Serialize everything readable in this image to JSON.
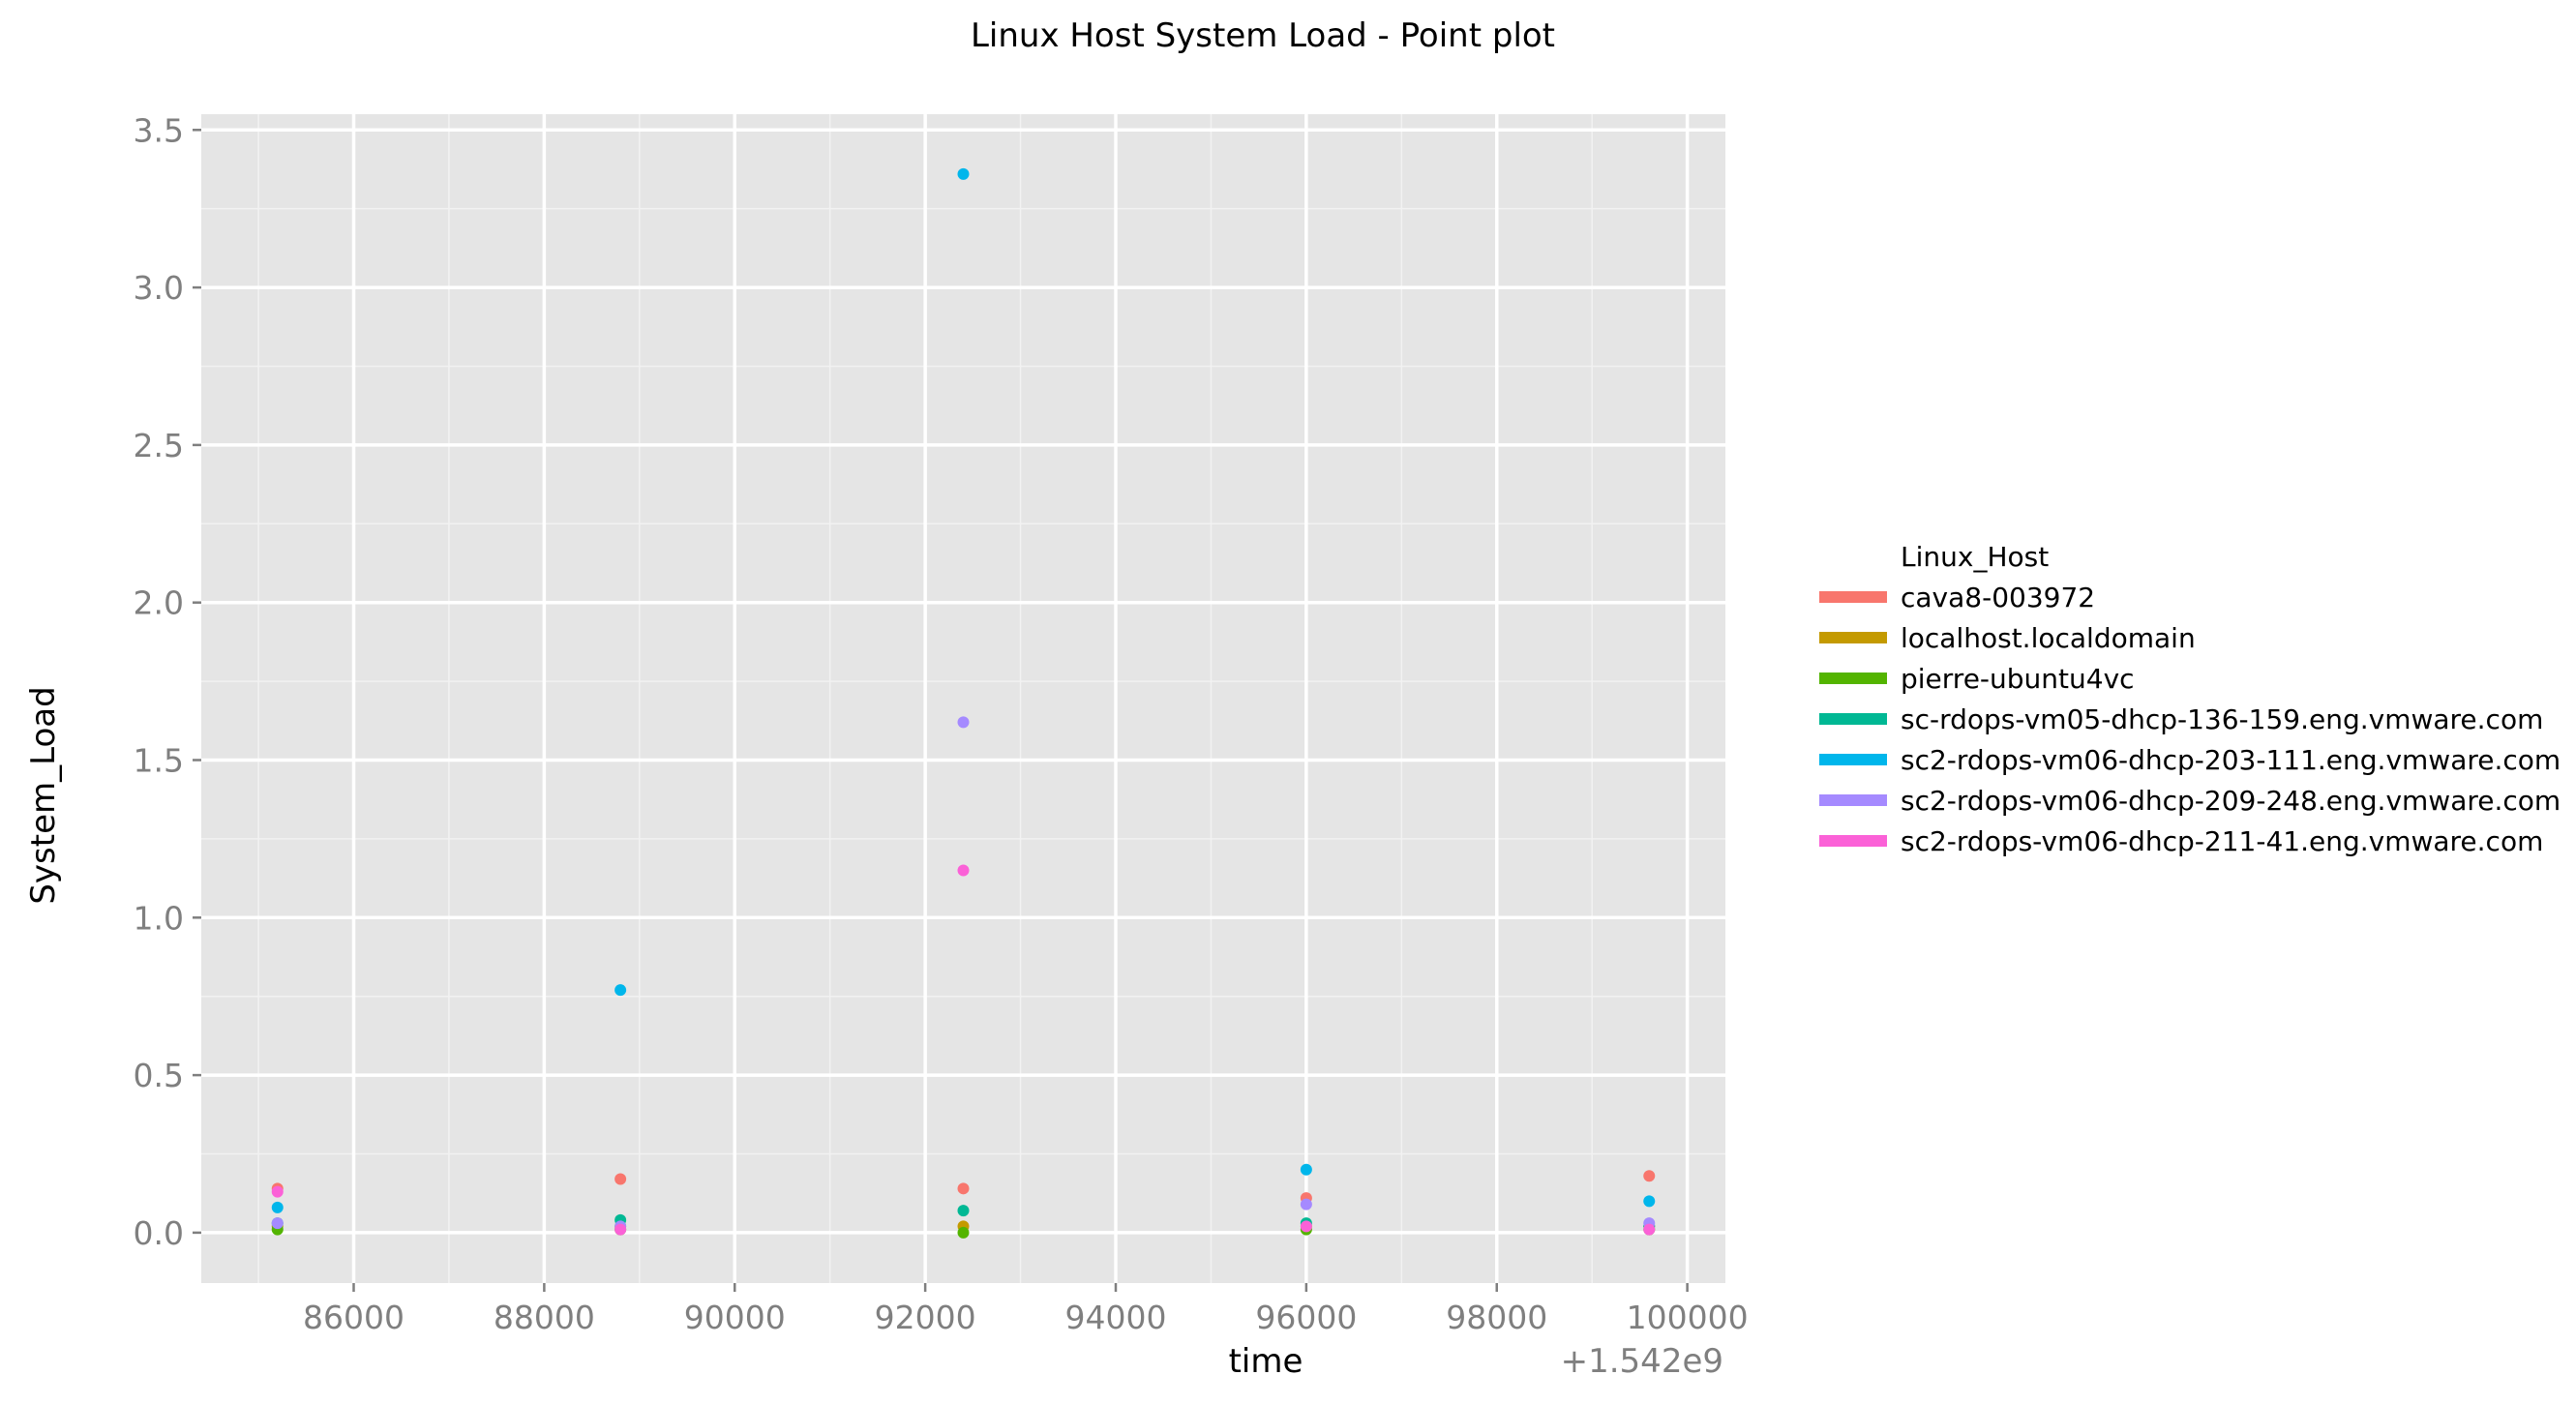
{
  "chart_data": {
    "type": "scatter",
    "title": "Linux Host System Load - Point plot",
    "xlabel": "time",
    "ylabel": "System_Load",
    "x_offset_label": "+1.542e9",
    "x_ticks": [
      "86000",
      "88000",
      "90000",
      "92000",
      "94000",
      "96000",
      "98000",
      "100000"
    ],
    "y_ticks": [
      "0.0",
      "0.5",
      "1.0",
      "1.5",
      "2.0",
      "2.5",
      "3.0",
      "3.5"
    ],
    "xlim": [
      84400,
      100400
    ],
    "ylim": [
      -0.16,
      3.55
    ],
    "grid": true,
    "legend_position": "right",
    "legend_title": "Linux_Host",
    "series": [
      {
        "name": "cava8-003972",
        "color": "#F8766D",
        "points": [
          {
            "x": 85200,
            "y": 0.14
          },
          {
            "x": 88800,
            "y": 0.17
          },
          {
            "x": 92400,
            "y": 0.14
          },
          {
            "x": 96000,
            "y": 0.11
          },
          {
            "x": 99600,
            "y": 0.18
          }
        ]
      },
      {
        "name": "localhost.localdomain",
        "color": "#C49A00",
        "points": [
          {
            "x": 85200,
            "y": 0.02
          },
          {
            "x": 88800,
            "y": 0.02
          },
          {
            "x": 92400,
            "y": 0.02
          },
          {
            "x": 96000,
            "y": 0.02
          },
          {
            "x": 99600,
            "y": 0.02
          }
        ]
      },
      {
        "name": "pierre-ubuntu4vc",
        "color": "#53B400",
        "points": [
          {
            "x": 85200,
            "y": 0.01
          },
          {
            "x": 88800,
            "y": 0.01
          },
          {
            "x": 92400,
            "y": 0.0
          },
          {
            "x": 96000,
            "y": 0.01
          },
          {
            "x": 99600,
            "y": 0.01
          }
        ]
      },
      {
        "name": "sc-rdops-vm05-dhcp-136-159.eng.vmware.com",
        "color": "#00B894",
        "points": [
          {
            "x": 85200,
            "y": 0.03
          },
          {
            "x": 88800,
            "y": 0.04
          },
          {
            "x": 92400,
            "y": 0.07
          },
          {
            "x": 96000,
            "y": 0.03
          },
          {
            "x": 99600,
            "y": 0.02
          }
        ]
      },
      {
        "name": "sc2-rdops-vm06-dhcp-203-111.eng.vmware.com",
        "color": "#00B6EB",
        "points": [
          {
            "x": 85200,
            "y": 0.08
          },
          {
            "x": 88800,
            "y": 0.77
          },
          {
            "x": 92400,
            "y": 3.36
          },
          {
            "x": 96000,
            "y": 0.2
          },
          {
            "x": 99600,
            "y": 0.1
          }
        ]
      },
      {
        "name": "sc2-rdops-vm06-dhcp-209-248.eng.vmware.com",
        "color": "#A58AFF",
        "points": [
          {
            "x": 85200,
            "y": 0.03
          },
          {
            "x": 88800,
            "y": 0.02
          },
          {
            "x": 92400,
            "y": 1.62
          },
          {
            "x": 96000,
            "y": 0.09
          },
          {
            "x": 99600,
            "y": 0.03
          }
        ]
      },
      {
        "name": "sc2-rdops-vm06-dhcp-211-41.eng.vmware.com",
        "color": "#FB61D7",
        "points": [
          {
            "x": 85200,
            "y": 0.13
          },
          {
            "x": 88800,
            "y": 0.01
          },
          {
            "x": 92400,
            "y": 1.15
          },
          {
            "x": 96000,
            "y": 0.02
          },
          {
            "x": 99600,
            "y": 0.01
          }
        ]
      }
    ]
  }
}
